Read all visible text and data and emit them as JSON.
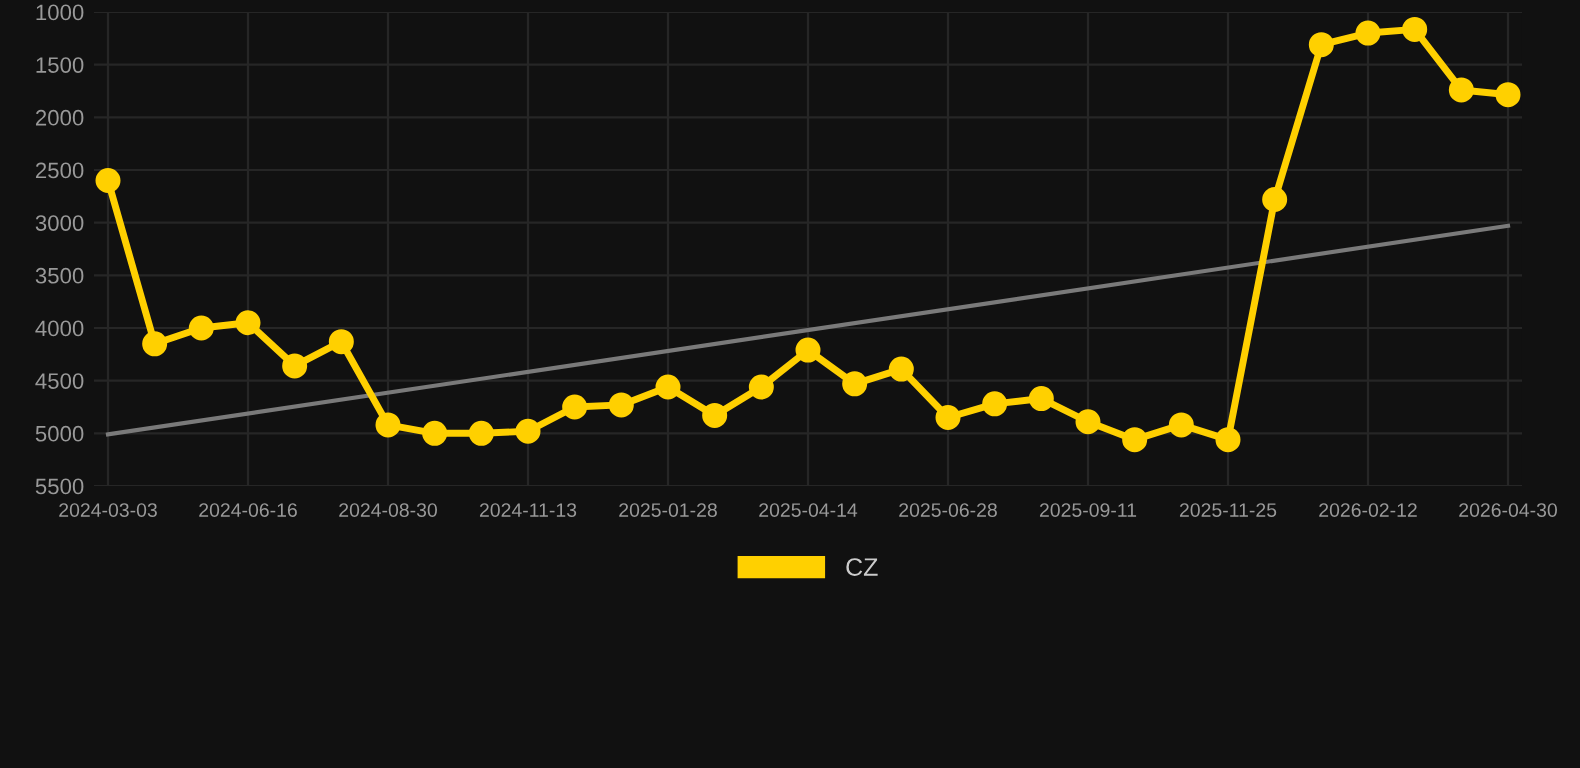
{
  "chart_data": {
    "type": "line",
    "categories": [
      "2024-03-03",
      null,
      null,
      "2024-06-16",
      null,
      null,
      "2024-08-30",
      null,
      null,
      "2024-11-13",
      null,
      null,
      "2025-01-28",
      null,
      null,
      "2025-04-14",
      null,
      null,
      "2025-06-28",
      null,
      null,
      "2025-09-11",
      null,
      null,
      "2025-11-25",
      null,
      null,
      "2026-02-12",
      null,
      null,
      "2026-04-30"
    ],
    "series": [
      {
        "name": "CZ",
        "color": "#ffd000",
        "marker": "circle",
        "values": [
          2600,
          4150,
          4000,
          3950,
          4360,
          4130,
          4920,
          5000,
          5000,
          4980,
          4750,
          4730,
          4560,
          4830,
          4560,
          4210,
          4530,
          4390,
          4850,
          4720,
          4670,
          4890,
          5060,
          4920,
          5060,
          2780,
          1310,
          1200,
          1165,
          1740,
          1785
        ]
      },
      {
        "color": "#7a7a7a",
        "marker": "none",
        "values": [
          5010,
          null,
          null,
          null,
          null,
          null,
          null,
          null,
          null,
          null,
          null,
          null,
          null,
          null,
          null,
          null,
          null,
          null,
          null,
          null,
          null,
          null,
          null,
          null,
          null,
          null,
          null,
          null,
          null,
          null,
          3030
        ]
      }
    ],
    "ylim": [
      5500,
      1000
    ],
    "yticks": [
      1000,
      1500,
      2000,
      2500,
      3000,
      3500,
      4000,
      4500,
      5000,
      5500
    ],
    "grid": true,
    "legend": "bottom"
  }
}
